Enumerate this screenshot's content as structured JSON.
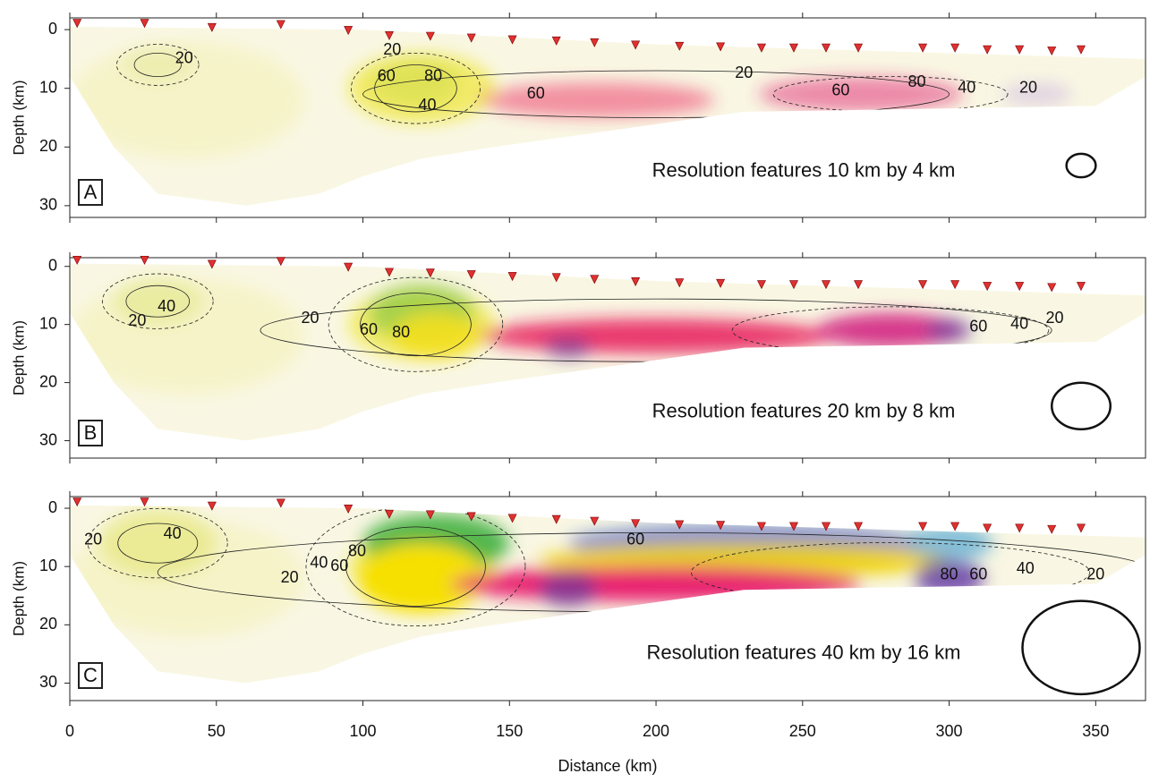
{
  "chart_data": [
    {
      "type": "section",
      "panel_label": "A",
      "ylabel": "Depth (km)",
      "xlim": [
        0,
        367
      ],
      "ylim": [
        -2,
        32
      ],
      "yticks": [
        0,
        10,
        20,
        30
      ],
      "annotation": "Resolution features 10 km by 4 km",
      "resolution": {
        "width": 10,
        "height": 4
      },
      "stations": {
        "x": [
          2.5,
          25.5,
          48.5,
          72,
          95,
          109,
          123,
          137,
          151,
          166,
          179,
          193,
          208,
          222,
          236,
          247,
          258,
          269,
          291,
          302,
          313,
          324,
          335,
          345
        ],
        "y": [
          -1,
          -1,
          -0.3,
          -0.8,
          0.2,
          1.1,
          1.2,
          1.5,
          1.8,
          2,
          2.3,
          2.7,
          2.9,
          3,
          3.2,
          3.2,
          3.2,
          3.2,
          3.2,
          3.2,
          3.5,
          3.5,
          3.7,
          3.5
        ]
      },
      "contour_labels": [
        {
          "value": 20,
          "x": 39,
          "y": 5
        },
        {
          "value": 20,
          "x": 110,
          "y": 3.5
        },
        {
          "value": 60,
          "x": 108,
          "y": 8
        },
        {
          "value": 80,
          "x": 124,
          "y": 8
        },
        {
          "value": 40,
          "x": 122,
          "y": 13
        },
        {
          "value": 60,
          "x": 159,
          "y": 11
        },
        {
          "value": 20,
          "x": 230,
          "y": 7.5
        },
        {
          "value": 60,
          "x": 263,
          "y": 10.5
        },
        {
          "value": 80,
          "x": 289,
          "y": 9
        },
        {
          "value": 40,
          "x": 306,
          "y": 10
        },
        {
          "value": 20,
          "x": 327,
          "y": 10
        }
      ]
    },
    {
      "type": "section",
      "panel_label": "B",
      "ylabel": "Depth (km)",
      "xlim": [
        0,
        367
      ],
      "ylim": [
        -1.5,
        33
      ],
      "yticks": [
        0,
        10,
        20,
        30
      ],
      "annotation": "Resolution features 20 km by 8 km",
      "resolution": {
        "width": 20,
        "height": 8
      },
      "stations": {
        "x": [
          2.5,
          25.5,
          48.5,
          72,
          95,
          109,
          123,
          137,
          151,
          166,
          179,
          193,
          208,
          222,
          236,
          247,
          258,
          269,
          291,
          302,
          313,
          324,
          335,
          345
        ],
        "y": [
          -1,
          -1,
          -0.3,
          -0.8,
          0.2,
          1.1,
          1.2,
          1.5,
          1.8,
          2,
          2.3,
          2.7,
          2.9,
          3,
          3.2,
          3.2,
          3.2,
          3.2,
          3.2,
          3.2,
          3.5,
          3.5,
          3.7,
          3.5
        ]
      },
      "contour_labels": [
        {
          "value": 40,
          "x": 33,
          "y": 7
        },
        {
          "value": 20,
          "x": 23,
          "y": 9.5
        },
        {
          "value": 20,
          "x": 82,
          "y": 9
        },
        {
          "value": 60,
          "x": 102,
          "y": 11
        },
        {
          "value": 80,
          "x": 113,
          "y": 11.5
        },
        {
          "value": 60,
          "x": 310,
          "y": 10.5
        },
        {
          "value": 40,
          "x": 324,
          "y": 10
        },
        {
          "value": 20,
          "x": 336,
          "y": 9
        }
      ]
    },
    {
      "type": "section",
      "panel_label": "C",
      "ylabel": "Depth (km)",
      "xlabel": "Distance (km)",
      "xlim": [
        0,
        367
      ],
      "ylim": [
        -2,
        33
      ],
      "yticks": [
        0,
        10,
        20,
        30
      ],
      "xticks": [
        0,
        50,
        100,
        150,
        200,
        250,
        300,
        350
      ],
      "annotation": "Resolution features 40 km by 16 km",
      "resolution": {
        "width": 40,
        "height": 16
      },
      "stations": {
        "x": [
          2.5,
          25.5,
          48.5,
          72,
          95,
          109,
          123,
          137,
          151,
          166,
          179,
          193,
          208,
          222,
          236,
          247,
          258,
          269,
          291,
          302,
          313,
          324,
          335,
          345
        ],
        "y": [
          -1,
          -1,
          -0.3,
          -0.8,
          0.2,
          1.1,
          1.2,
          1.5,
          1.8,
          2,
          2.3,
          2.7,
          2.9,
          3,
          3.2,
          3.2,
          3.2,
          3.2,
          3.2,
          3.2,
          3.5,
          3.5,
          3.7,
          3.5
        ]
      },
      "contour_labels": [
        {
          "value": 20,
          "x": 8,
          "y": 5.5
        },
        {
          "value": 40,
          "x": 35,
          "y": 4.5
        },
        {
          "value": 20,
          "x": 75,
          "y": 12
        },
        {
          "value": 40,
          "x": 85,
          "y": 9.5
        },
        {
          "value": 60,
          "x": 92,
          "y": 10
        },
        {
          "value": 80,
          "x": 98,
          "y": 7.5
        },
        {
          "value": 60,
          "x": 193,
          "y": 5.5
        },
        {
          "value": 80,
          "x": 300,
          "y": 11.5
        },
        {
          "value": 60,
          "x": 310,
          "y": 11.5
        },
        {
          "value": 40,
          "x": 326,
          "y": 10.5
        },
        {
          "value": 20,
          "x": 350,
          "y": 11.5
        }
      ]
    }
  ]
}
